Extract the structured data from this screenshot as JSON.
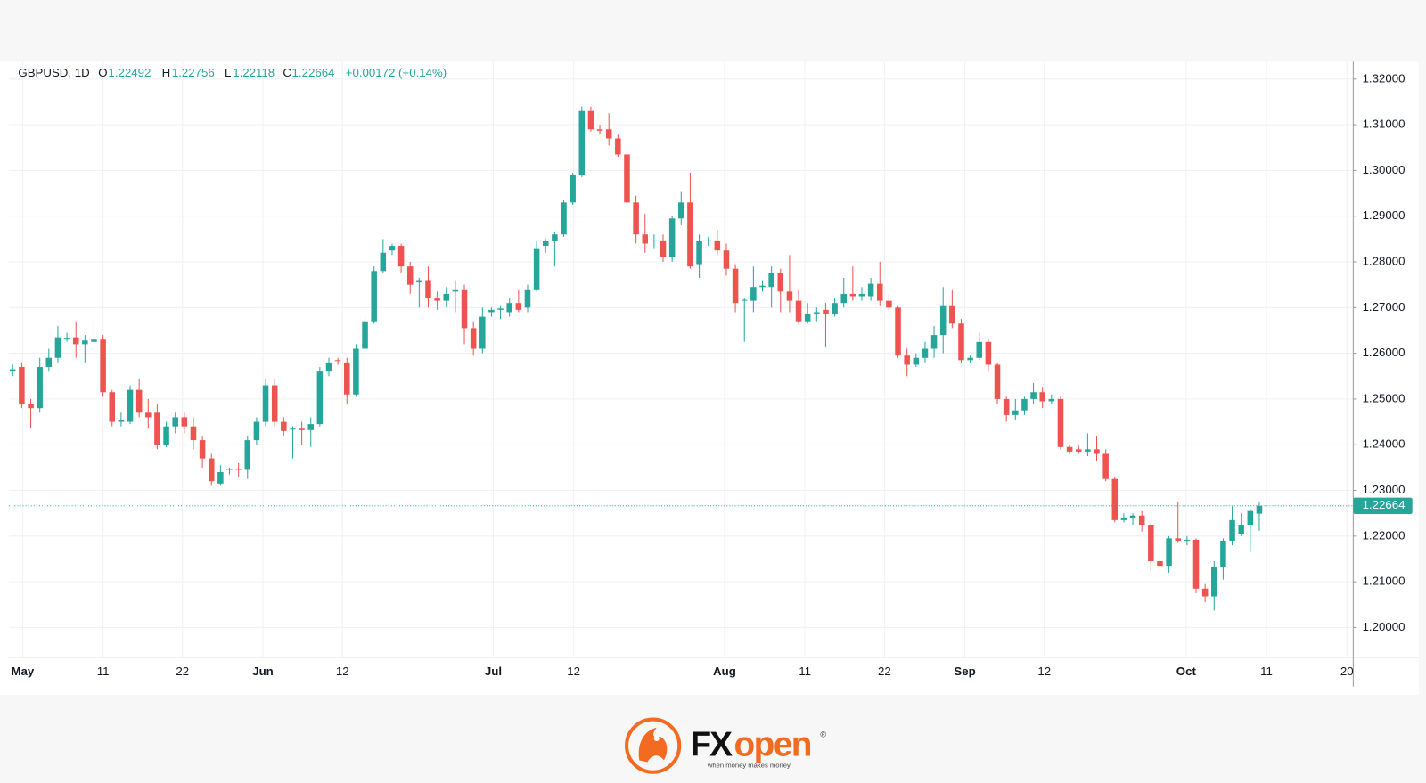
{
  "chart_data": {
    "type": "candlestick",
    "header": {
      "symbol": "GBPUSD, 1D",
      "open_prefix": "O",
      "high_prefix": "H",
      "low_prefix": "L",
      "close_prefix": "C",
      "change": "+0.00172 (+0.14%)"
    },
    "up_color": "#26a69a",
    "down_color": "#ef5350",
    "open": [
      1.256,
      1.257,
      1.249,
      1.248,
      1.257,
      1.259,
      1.263,
      1.2635,
      1.262,
      1.2625,
      1.263,
      1.2515,
      1.245,
      1.245,
      1.252,
      1.247,
      1.247,
      1.24,
      1.244,
      1.246,
      1.244,
      1.241,
      1.237,
      1.2315,
      1.2345,
      1.2347,
      1.2345,
      1.241,
      1.245,
      1.253,
      1.245,
      1.2433,
      1.2435,
      1.2432,
      1.2445,
      1.256,
      1.2585,
      1.258,
      1.251,
      1.261,
      1.267,
      1.278,
      1.2825,
      1.2835,
      1.279,
      1.2755,
      1.276,
      1.272,
      1.2715,
      1.2735,
      1.274,
      1.2655,
      1.261,
      1.269,
      1.2695,
      1.269,
      1.271,
      1.27,
      1.274,
      1.2835,
      1.2845,
      1.286,
      1.293,
      1.299,
      1.313,
      1.309,
      1.309,
      1.307,
      1.3035,
      1.293,
      1.286,
      1.2845,
      1.2847,
      1.281,
      1.2895,
      1.293,
      1.2795,
      1.2845,
      1.2847,
      1.2825,
      1.2785,
      1.2715,
      1.2715,
      1.2745,
      1.2745,
      1.2775,
      1.2735,
      1.2715,
      1.267,
      1.2685,
      1.2695,
      1.2685,
      1.271,
      1.273,
      1.2725,
      1.2725,
      1.2752,
      1.2715,
      1.27,
      1.2595,
      1.2575,
      1.259,
      1.261,
      1.264,
      1.2705,
      1.2665,
      1.2585,
      1.259,
      1.2625,
      1.2575,
      1.25,
      1.2465,
      1.2475,
      1.25,
      1.2515,
      1.2495,
      1.25,
      1.2395,
      1.239,
      1.2385,
      1.239,
      1.238,
      1.2325,
      1.2235,
      1.224,
      1.2245,
      1.2225,
      1.2145,
      1.2135,
      1.2195,
      1.219,
      1.2192,
      1.2085,
      1.2068,
      1.2133,
      1.219,
      1.2205,
      1.2225,
      1.22492
    ],
    "high": [
      1.2575,
      1.258,
      1.25,
      1.259,
      1.261,
      1.266,
      1.2645,
      1.267,
      1.264,
      1.268,
      1.264,
      1.252,
      1.247,
      1.253,
      1.2545,
      1.25,
      1.249,
      1.245,
      1.247,
      1.247,
      1.246,
      1.242,
      1.238,
      1.2355,
      1.235,
      1.236,
      1.242,
      1.246,
      1.2545,
      1.2545,
      1.246,
      1.244,
      1.245,
      1.246,
      1.257,
      1.259,
      1.259,
      1.259,
      1.262,
      1.268,
      1.279,
      1.285,
      1.284,
      1.284,
      1.28,
      1.2765,
      1.279,
      1.2735,
      1.2745,
      1.276,
      1.275,
      1.267,
      1.27,
      1.27,
      1.2705,
      1.272,
      1.274,
      1.275,
      1.2845,
      1.285,
      1.2865,
      1.2935,
      1.2995,
      1.314,
      1.314,
      1.31,
      1.3125,
      1.308,
      1.304,
      1.2945,
      1.2905,
      1.286,
      1.286,
      1.29,
      1.2955,
      1.2995,
      1.286,
      1.2855,
      1.287,
      1.284,
      1.2795,
      1.272,
      1.279,
      1.276,
      1.279,
      1.2785,
      1.2815,
      1.274,
      1.271,
      1.27,
      1.271,
      1.272,
      1.2765,
      1.279,
      1.2745,
      1.2765,
      1.28,
      1.273,
      1.2705,
      1.261,
      1.26,
      1.2625,
      1.266,
      1.2745,
      1.274,
      1.2675,
      1.2595,
      1.2645,
      1.263,
      1.258,
      1.2505,
      1.25,
      1.2505,
      1.2535,
      1.2525,
      1.251,
      1.2505,
      1.24,
      1.24,
      1.2425,
      1.242,
      1.239,
      1.233,
      1.225,
      1.225,
      1.2255,
      1.223,
      1.216,
      1.22,
      1.2275,
      1.22,
      1.2195,
      1.2095,
      1.2145,
      1.2195,
      1.2265,
      1.225,
      1.226,
      1.22756
    ],
    "low": [
      1.255,
      1.248,
      1.2435,
      1.247,
      1.256,
      1.258,
      1.2625,
      1.259,
      1.258,
      1.2615,
      1.2505,
      1.244,
      1.244,
      1.2445,
      1.246,
      1.2435,
      1.239,
      1.2395,
      1.2425,
      1.2425,
      1.239,
      1.235,
      1.231,
      1.231,
      1.2335,
      1.233,
      1.2325,
      1.24,
      1.244,
      1.244,
      1.242,
      1.237,
      1.24,
      1.2395,
      1.244,
      1.255,
      1.2575,
      1.249,
      1.2505,
      1.26,
      1.2665,
      1.2775,
      1.2815,
      1.2775,
      1.273,
      1.27,
      1.27,
      1.2695,
      1.27,
      1.269,
      1.262,
      1.2595,
      1.26,
      1.268,
      1.2675,
      1.268,
      1.269,
      1.269,
      1.2735,
      1.282,
      1.279,
      1.2855,
      1.2925,
      1.2985,
      1.3085,
      1.308,
      1.3055,
      1.303,
      1.2925,
      1.284,
      1.282,
      1.283,
      1.28,
      1.28,
      1.288,
      1.2785,
      1.2765,
      1.2835,
      1.2815,
      1.277,
      1.269,
      1.2625,
      1.269,
      1.2735,
      1.27,
      1.269,
      1.269,
      1.2665,
      1.2665,
      1.267,
      1.2615,
      1.268,
      1.27,
      1.2715,
      1.2715,
      1.2715,
      1.2705,
      1.269,
      1.259,
      1.255,
      1.257,
      1.258,
      1.259,
      1.26,
      1.2655,
      1.258,
      1.258,
      1.2585,
      1.256,
      1.249,
      1.245,
      1.2455,
      1.2465,
      1.249,
      1.248,
      1.249,
      1.239,
      1.238,
      1.238,
      1.2375,
      1.2365,
      1.232,
      1.223,
      1.223,
      1.2225,
      1.221,
      1.212,
      1.211,
      1.212,
      1.2185,
      1.218,
      1.2075,
      1.2055,
      1.2037,
      1.2105,
      1.218,
      1.22,
      1.2165,
      1.22118
    ],
    "close": [
      1.2565,
      1.249,
      1.248,
      1.257,
      1.259,
      1.2635,
      1.2632,
      1.262,
      1.2628,
      1.263,
      1.2515,
      1.245,
      1.2455,
      1.252,
      1.247,
      1.246,
      1.24,
      1.244,
      1.246,
      1.244,
      1.241,
      1.237,
      1.232,
      1.234,
      1.2347,
      1.2345,
      1.241,
      1.245,
      1.253,
      1.245,
      1.243,
      1.2435,
      1.2432,
      1.2445,
      1.256,
      1.258,
      1.2583,
      1.251,
      1.261,
      1.267,
      1.278,
      1.282,
      1.2835,
      1.279,
      1.275,
      1.276,
      1.272,
      1.2715,
      1.273,
      1.274,
      1.2655,
      1.261,
      1.268,
      1.2695,
      1.2698,
      1.271,
      1.2695,
      1.274,
      1.283,
      1.2845,
      1.286,
      1.293,
      1.299,
      1.313,
      1.309,
      1.3087,
      1.307,
      1.3035,
      1.293,
      1.286,
      1.284,
      1.2847,
      1.281,
      1.2895,
      1.293,
      1.279,
      1.2845,
      1.2847,
      1.2825,
      1.2785,
      1.271,
      1.2717,
      1.2745,
      1.2748,
      1.2775,
      1.2735,
      1.2715,
      1.267,
      1.2685,
      1.269,
      1.2685,
      1.271,
      1.273,
      1.2725,
      1.273,
      1.2752,
      1.2715,
      1.27,
      1.2595,
      1.2575,
      1.259,
      1.261,
      1.264,
      1.2705,
      1.2665,
      1.2585,
      1.259,
      1.2625,
      1.2575,
      1.25,
      1.2465,
      1.2475,
      1.25,
      1.2515,
      1.2495,
      1.25,
      1.2395,
      1.2385,
      1.2385,
      1.239,
      1.238,
      1.2325,
      1.2235,
      1.224,
      1.2245,
      1.2225,
      1.2145,
      1.2135,
      1.2195,
      1.219,
      1.2192,
      1.2085,
      1.2068,
      1.2133,
      1.219,
      1.2235,
      1.2225,
      1.2255,
      1.22664
    ],
    "xlim": [
      -0.4,
      148.4
    ],
    "xticks": [
      {
        "value": 1.1,
        "label": "May"
      },
      {
        "value": 10.0,
        "label": "11"
      },
      {
        "value": 18.8,
        "label": "22"
      },
      {
        "value": 27.7,
        "label": "Jun"
      },
      {
        "value": 36.5,
        "label": "12"
      },
      {
        "value": 53.2,
        "label": "Jul"
      },
      {
        "value": 62.1,
        "label": "12"
      },
      {
        "value": 78.8,
        "label": "Aug"
      },
      {
        "value": 87.7,
        "label": "11"
      },
      {
        "value": 96.5,
        "label": "22"
      },
      {
        "value": 105.4,
        "label": "Sep"
      },
      {
        "value": 114.2,
        "label": "12"
      },
      {
        "value": 129.9,
        "label": "Oct"
      },
      {
        "value": 138.8,
        "label": "11"
      },
      {
        "value": 147.7,
        "label": "20"
      }
    ],
    "ylim": [
      1.19363,
      1.32378
    ],
    "yticks": [
      {
        "value": 1.2,
        "label": "1.20000"
      },
      {
        "value": 1.21,
        "label": "1.21000"
      },
      {
        "value": 1.22,
        "label": "1.22000"
      },
      {
        "value": 1.23,
        "label": "1.23000"
      },
      {
        "value": 1.24,
        "label": "1.24000"
      },
      {
        "value": 1.25,
        "label": "1.25000"
      },
      {
        "value": 1.26,
        "label": "1.26000"
      },
      {
        "value": 1.27,
        "label": "1.27000"
      },
      {
        "value": 1.28,
        "label": "1.28000"
      },
      {
        "value": 1.29,
        "label": "1.29000"
      },
      {
        "value": 1.3,
        "label": "1.30000"
      },
      {
        "value": 1.31,
        "label": "1.31000"
      },
      {
        "value": 1.32,
        "label": "1.32000"
      }
    ],
    "grid": true,
    "last_price_line": true
  },
  "logo": {
    "prefix": "FX",
    "suffix": "open",
    "mark": "®",
    "tagline": "when money makes money"
  }
}
